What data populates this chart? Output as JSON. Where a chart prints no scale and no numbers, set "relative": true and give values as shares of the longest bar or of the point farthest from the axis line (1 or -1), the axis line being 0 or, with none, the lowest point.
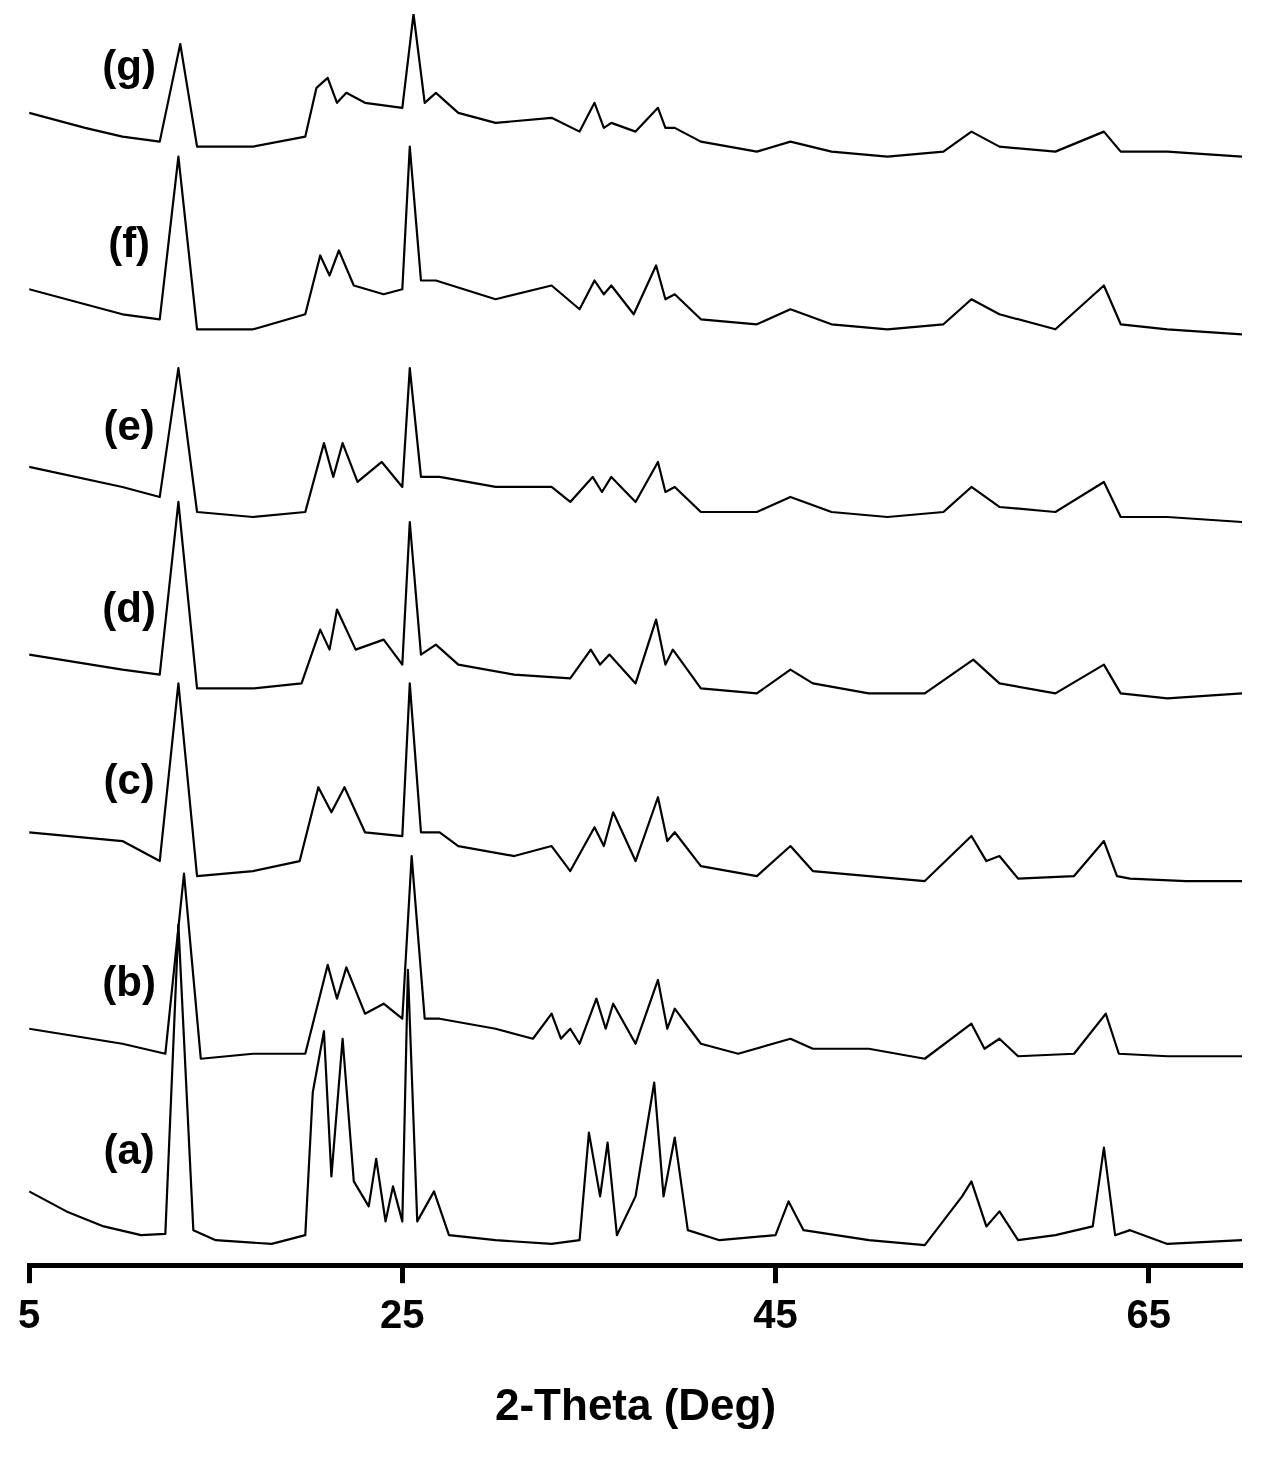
{
  "chart_data": {
    "type": "line",
    "xlabel": "2-Theta (Deg)",
    "relative": true,
    "xlim": [
      5,
      70
    ],
    "xticks": [
      5,
      25,
      45,
      65
    ],
    "grid": false,
    "legend": false,
    "marker": "none",
    "line_style": "solid",
    "series": [
      {
        "name": "(a)",
        "color": "#000000",
        "x": [
          5,
          7,
          9,
          11,
          12.3,
          13.0,
          13.8,
          15,
          18,
          19.8,
          20.2,
          20.8,
          21.2,
          21.8,
          22.4,
          23.2,
          23.6,
          24.1,
          24.5,
          25.0,
          25.3,
          25.8,
          26.7,
          27.5,
          30,
          33,
          34.5,
          35.0,
          35.6,
          36.0,
          36.5,
          37.5,
          38.5,
          39.0,
          39.6,
          40.3,
          42,
          45,
          45.7,
          46.5,
          50,
          53,
          55.0,
          55.5,
          56.3,
          57,
          58,
          60,
          62,
          62.6,
          63.2,
          64,
          66,
          70
        ],
        "values": [
          0.059,
          0.043,
          0.031,
          0.024,
          0.025,
          0.272,
          0.028,
          0.02,
          0.017,
          0.024,
          0.138,
          0.187,
          0.071,
          0.181,
          0.067,
          0.047,
          0.085,
          0.035,
          0.063,
          0.035,
          0.236,
          0.035,
          0.059,
          0.024,
          0.02,
          0.017,
          0.02,
          0.106,
          0.055,
          0.098,
          0.024,
          0.055,
          0.146,
          0.055,
          0.102,
          0.028,
          0.02,
          0.024,
          0.051,
          0.028,
          0.02,
          0.016,
          0.055,
          0.067,
          0.031,
          0.043,
          0.02,
          0.024,
          0.031,
          0.094,
          0.024,
          0.028,
          0.017,
          0.02
        ]
      },
      {
        "name": "(b)",
        "color": "#000000",
        "x": [
          5,
          10,
          12.3,
          13.3,
          14.2,
          17,
          19.8,
          21.0,
          21.5,
          22.0,
          23,
          24,
          25,
          25.5,
          26.2,
          27,
          30,
          32,
          33,
          33.5,
          34,
          34.5,
          35.4,
          35.9,
          36.3,
          37.5,
          38.7,
          39.2,
          39.6,
          41,
          43,
          45.8,
          47,
          50,
          53,
          55.5,
          56.2,
          57,
          58,
          61,
          62.7,
          63.4,
          66,
          70
        ],
        "values": [
          0.189,
          0.177,
          0.169,
          0.313,
          0.165,
          0.169,
          0.169,
          0.24,
          0.213,
          0.238,
          0.201,
          0.209,
          0.197,
          0.327,
          0.197,
          0.197,
          0.189,
          0.181,
          0.201,
          0.181,
          0.189,
          0.177,
          0.213,
          0.189,
          0.209,
          0.177,
          0.228,
          0.189,
          0.205,
          0.177,
          0.169,
          0.181,
          0.173,
          0.173,
          0.165,
          0.193,
          0.173,
          0.181,
          0.167,
          0.169,
          0.201,
          0.169,
          0.167,
          0.167
        ]
      },
      {
        "name": "(c)",
        "color": "#000000",
        "x": [
          5,
          10,
          12,
          13.0,
          14,
          17,
          19.5,
          20.5,
          21.2,
          21.9,
          23,
          25,
          25.4,
          26,
          27,
          28,
          31,
          33,
          34,
          35.3,
          35.8,
          36.3,
          37.5,
          38.7,
          39.2,
          39.6,
          41,
          44,
          45.8,
          47,
          50,
          53,
          55.5,
          56.3,
          57,
          58,
          61,
          62.6,
          63.3,
          64,
          67,
          70
        ],
        "values": [
          0.346,
          0.339,
          0.323,
          0.465,
          0.311,
          0.315,
          0.323,
          0.382,
          0.362,
          0.382,
          0.346,
          0.343,
          0.465,
          0.346,
          0.346,
          0.335,
          0.327,
          0.335,
          0.315,
          0.35,
          0.335,
          0.362,
          0.323,
          0.374,
          0.339,
          0.346,
          0.319,
          0.311,
          0.335,
          0.315,
          0.311,
          0.307,
          0.343,
          0.323,
          0.327,
          0.309,
          0.311,
          0.339,
          0.311,
          0.309,
          0.307,
          0.307
        ]
      },
      {
        "name": "(d)",
        "color": "#000000",
        "x": [
          5,
          10,
          12,
          13.0,
          14,
          17,
          19.6,
          20.6,
          21.1,
          21.5,
          22.5,
          24,
          25,
          25.4,
          26,
          26.8,
          28,
          31,
          34,
          35.1,
          35.6,
          36.1,
          37.5,
          38.6,
          39.1,
          39.5,
          41,
          44,
          45.8,
          47,
          50,
          53,
          55.6,
          57,
          60,
          62.6,
          63.5,
          66,
          70
        ],
        "values": [
          0.488,
          0.476,
          0.472,
          0.61,
          0.461,
          0.461,
          0.465,
          0.508,
          0.492,
          0.524,
          0.492,
          0.5,
          0.48,
          0.594,
          0.488,
          0.496,
          0.48,
          0.472,
          0.469,
          0.492,
          0.48,
          0.488,
          0.465,
          0.516,
          0.48,
          0.492,
          0.461,
          0.457,
          0.476,
          0.465,
          0.457,
          0.457,
          0.484,
          0.465,
          0.457,
          0.48,
          0.457,
          0.453,
          0.457
        ]
      },
      {
        "name": "(e)",
        "color": "#000000",
        "x": [
          5,
          10,
          12,
          13.0,
          14,
          17,
          19.8,
          20.8,
          21.3,
          21.8,
          22.6,
          23.9,
          25,
          25.4,
          26,
          27,
          30,
          33,
          34,
          35.2,
          35.7,
          36.2,
          37.5,
          38.7,
          39.1,
          39.6,
          41,
          44,
          45.8,
          48,
          51,
          54,
          55.5,
          57,
          60,
          62.6,
          63.5,
          66,
          70
        ],
        "values": [
          0.638,
          0.622,
          0.614,
          0.717,
          0.602,
          0.598,
          0.602,
          0.657,
          0.63,
          0.657,
          0.626,
          0.642,
          0.622,
          0.717,
          0.63,
          0.63,
          0.622,
          0.622,
          0.61,
          0.63,
          0.618,
          0.63,
          0.61,
          0.642,
          0.618,
          0.622,
          0.602,
          0.602,
          0.614,
          0.602,
          0.598,
          0.602,
          0.622,
          0.606,
          0.602,
          0.626,
          0.598,
          0.598,
          0.594
        ]
      },
      {
        "name": "(f)",
        "color": "#000000",
        "x": [
          5,
          8,
          10,
          12,
          13.0,
          14,
          17,
          19.8,
          20.6,
          21.1,
          21.6,
          22.4,
          24,
          25,
          25.4,
          26,
          26.8,
          30,
          33,
          34.5,
          35.3,
          35.8,
          36.2,
          37.4,
          38.6,
          39.1,
          39.6,
          41,
          44,
          45.8,
          48,
          51,
          54,
          55.5,
          57,
          60,
          62.6,
          63.5,
          66,
          70
        ],
        "values": [
          0.78,
          0.768,
          0.76,
          0.756,
          0.886,
          0.748,
          0.748,
          0.76,
          0.807,
          0.791,
          0.811,
          0.783,
          0.776,
          0.78,
          0.894,
          0.787,
          0.787,
          0.772,
          0.783,
          0.764,
          0.787,
          0.776,
          0.783,
          0.76,
          0.799,
          0.772,
          0.776,
          0.756,
          0.752,
          0.764,
          0.752,
          0.748,
          0.752,
          0.772,
          0.76,
          0.748,
          0.783,
          0.752,
          0.748,
          0.744
        ]
      },
      {
        "name": "(g)",
        "color": "#000000",
        "x": [
          5,
          8,
          10,
          12,
          13.1,
          14,
          17,
          19.8,
          20.4,
          21,
          21.5,
          22,
          23,
          25,
          25.6,
          26.2,
          26.8,
          28,
          30,
          33,
          34.5,
          35.3,
          35.8,
          36.2,
          37.5,
          38.7,
          39.1,
          39.6,
          41,
          44,
          45.8,
          48,
          51,
          54,
          55.5,
          57,
          60,
          62.6,
          63.5,
          66,
          70
        ],
        "values": [
          0.921,
          0.909,
          0.902,
          0.898,
          0.976,
          0.894,
          0.894,
          0.902,
          0.941,
          0.949,
          0.929,
          0.937,
          0.929,
          0.925,
          1,
          0.929,
          0.937,
          0.921,
          0.913,
          0.917,
          0.906,
          0.929,
          0.909,
          0.913,
          0.906,
          0.925,
          0.909,
          0.909,
          0.898,
          0.89,
          0.898,
          0.89,
          0.886,
          0.89,
          0.906,
          0.894,
          0.89,
          0.906,
          0.89,
          0.89,
          0.886
        ]
      }
    ]
  }
}
